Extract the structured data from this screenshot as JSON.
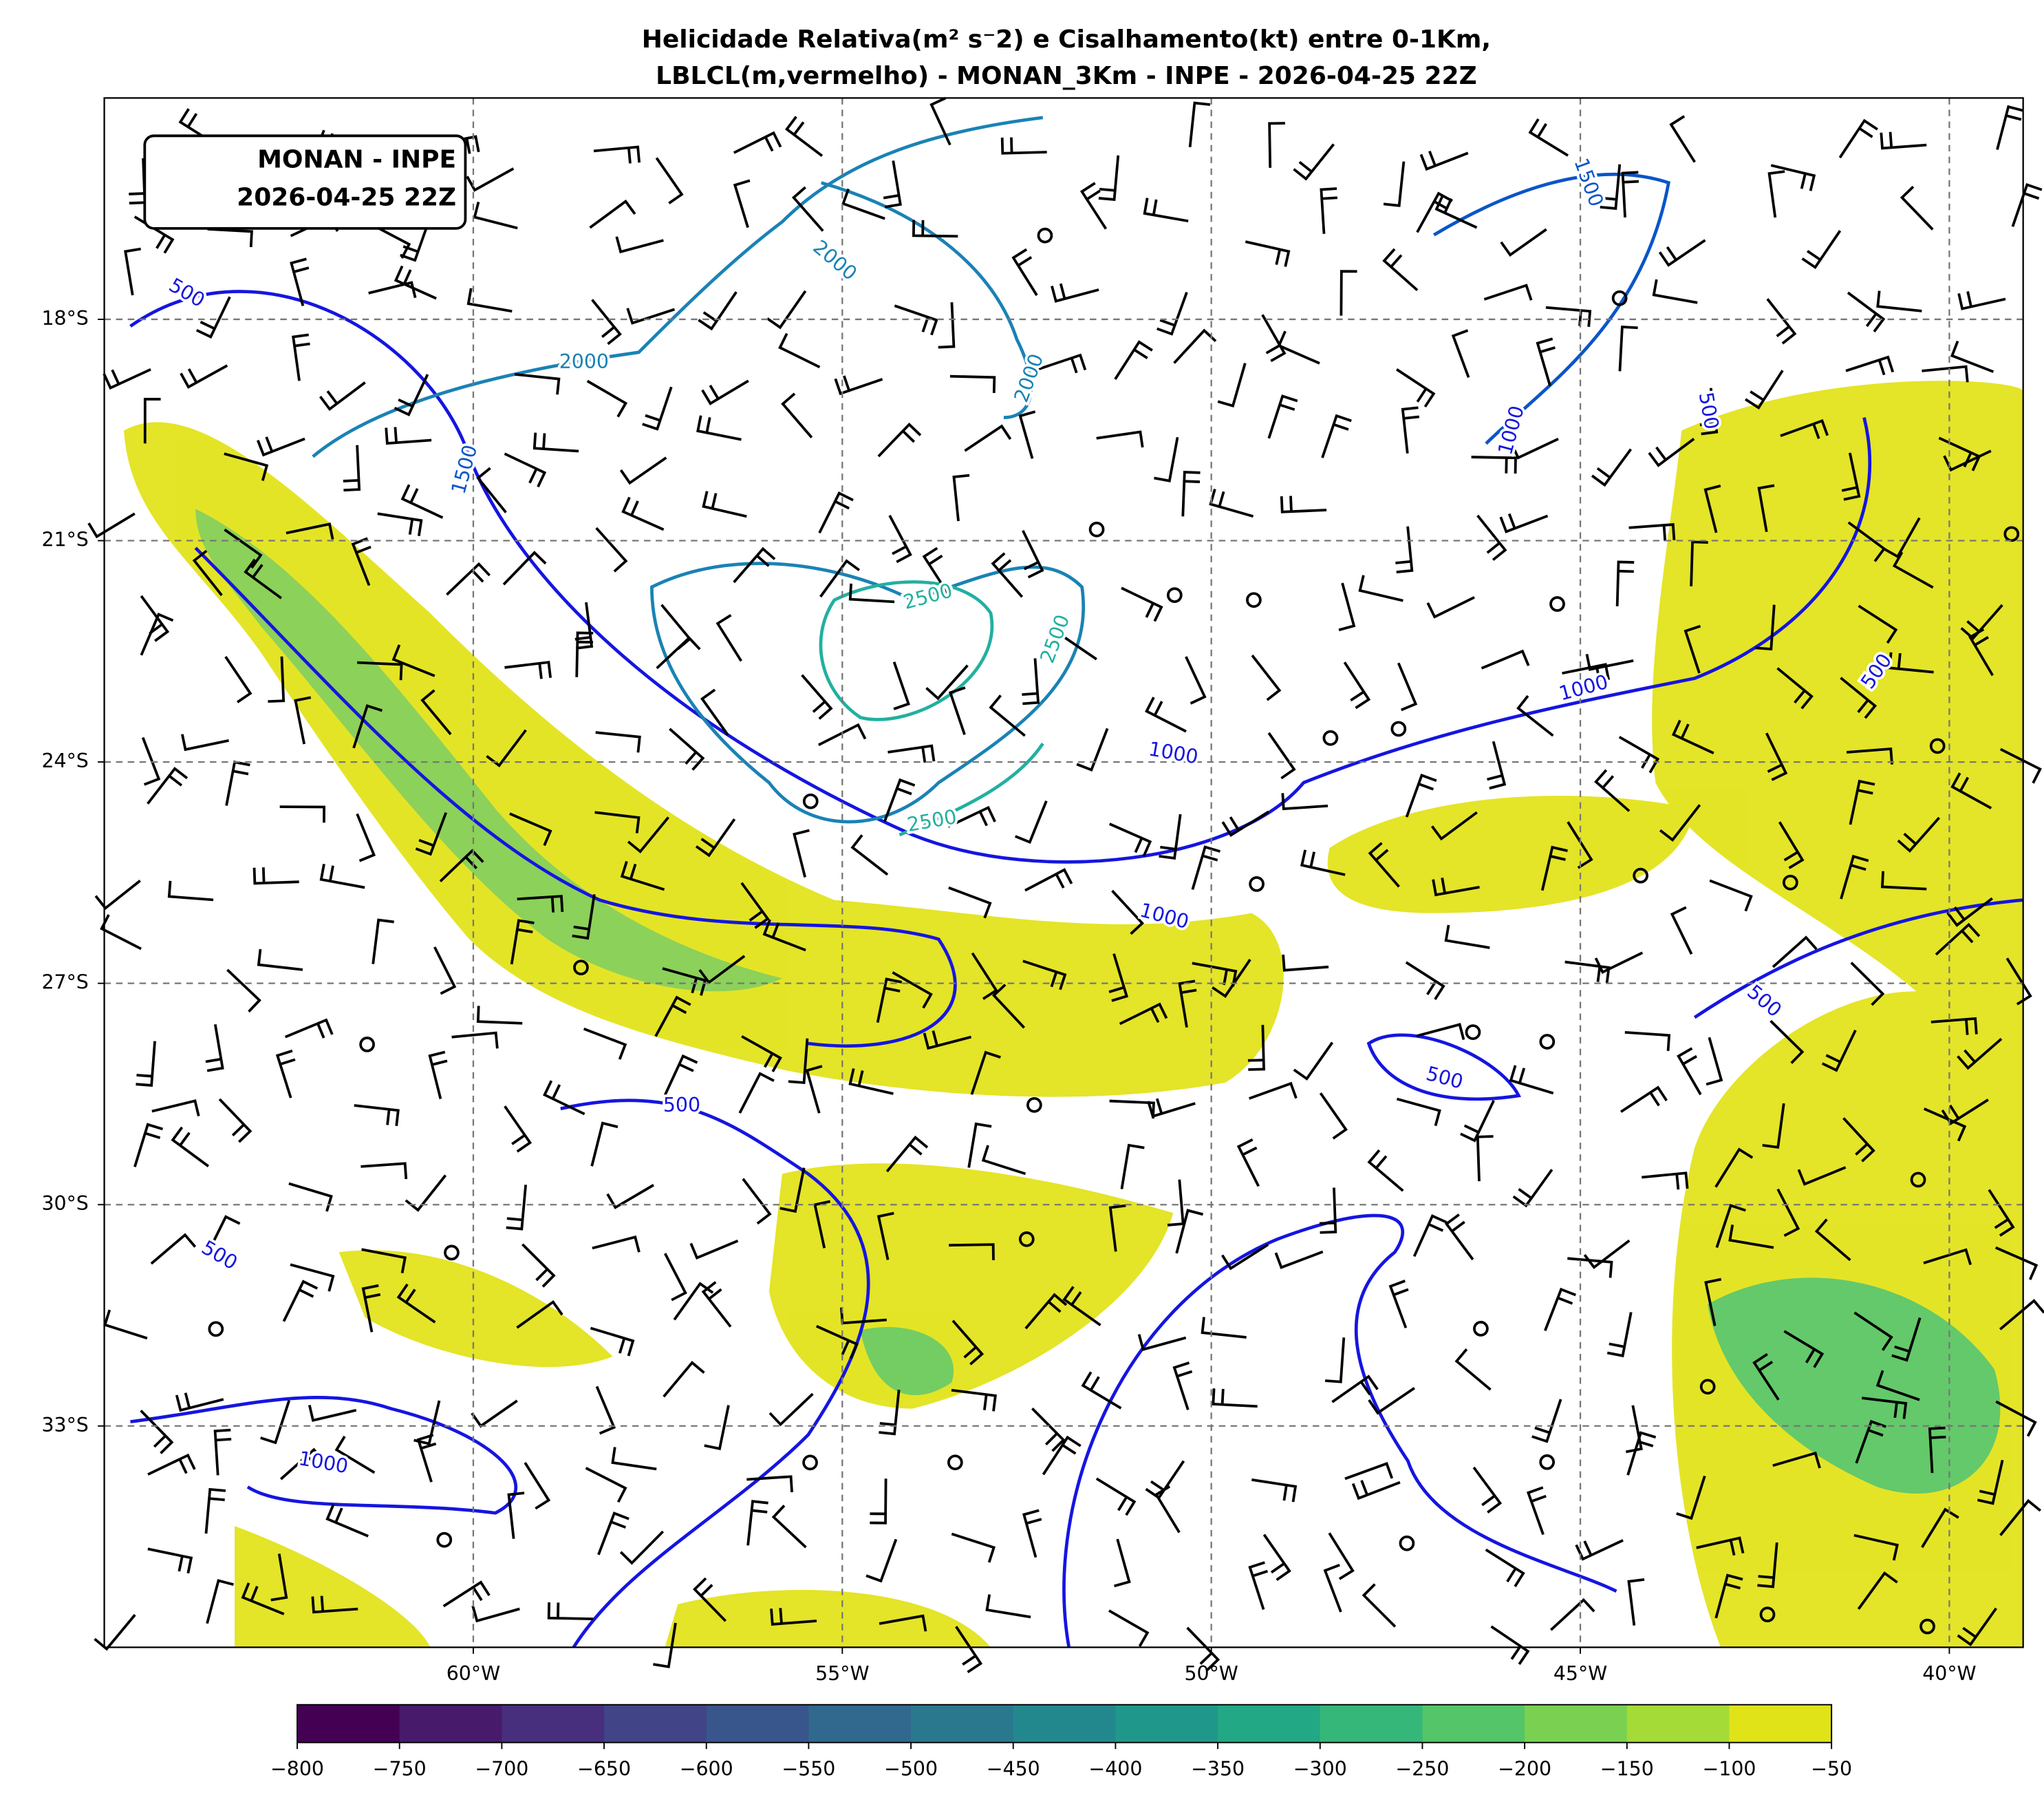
{
  "title": [
    "Helicidade Relativa(m² s⁻2) e Cisalhamento(kt) entre 0-1Km,",
    "LBLCL(m,vermelho) - MONAN_3Km - INPE - 2026-04-25 22Z"
  ],
  "info_box": [
    "MONAN - INPE",
    "2026-04-25 22Z"
  ],
  "map": {
    "xlim": [
      -65,
      -39
    ],
    "ylim": [
      -36,
      -15
    ],
    "xticks": [
      {
        "value": -60,
        "label": "60°W"
      },
      {
        "value": -55,
        "label": "55°W"
      },
      {
        "value": -50,
        "label": "50°W"
      },
      {
        "value": -45,
        "label": "45°W"
      },
      {
        "value": -40,
        "label": "40°W"
      }
    ],
    "yticks": [
      {
        "value": -18,
        "label": "18°S"
      },
      {
        "value": -21,
        "label": "21°S"
      },
      {
        "value": -24,
        "label": "24°S"
      },
      {
        "value": -27,
        "label": "27°S"
      },
      {
        "value": -30,
        "label": "30°S"
      },
      {
        "value": -33,
        "label": "33°S"
      }
    ],
    "grid": true,
    "contour_labels": [
      500,
      2000,
      1500,
      2000,
      2000,
      1500,
      500,
      1000,
      2500,
      2500,
      1000,
      500,
      1000,
      2500,
      1000,
      500,
      500,
      500,
      500,
      1000
    ]
  },
  "colorbar": {
    "lim": [
      -800,
      -50
    ],
    "ticks": [
      {
        "value": -800,
        "label": "−800"
      },
      {
        "value": -750,
        "label": "−750"
      },
      {
        "value": -700,
        "label": "−700"
      },
      {
        "value": -650,
        "label": "−650"
      },
      {
        "value": -600,
        "label": "−600"
      },
      {
        "value": -550,
        "label": "−550"
      },
      {
        "value": -500,
        "label": "−500"
      },
      {
        "value": -450,
        "label": "−450"
      },
      {
        "value": -400,
        "label": "−400"
      },
      {
        "value": -350,
        "label": "−350"
      },
      {
        "value": -300,
        "label": "−300"
      },
      {
        "value": -250,
        "label": "−250"
      },
      {
        "value": -200,
        "label": "−200"
      },
      {
        "value": -150,
        "label": "−150"
      },
      {
        "value": -100,
        "label": "−100"
      },
      {
        "value": -50,
        "label": "−50"
      }
    ],
    "colors": [
      "#440154",
      "#481a6c",
      "#472f7d",
      "#414487",
      "#39568c",
      "#31688e",
      "#2a788e",
      "#23888e",
      "#1f988b",
      "#22a884",
      "#35b779",
      "#54c568",
      "#7ad151",
      "#a5db36",
      "#e0e318"
    ]
  }
}
